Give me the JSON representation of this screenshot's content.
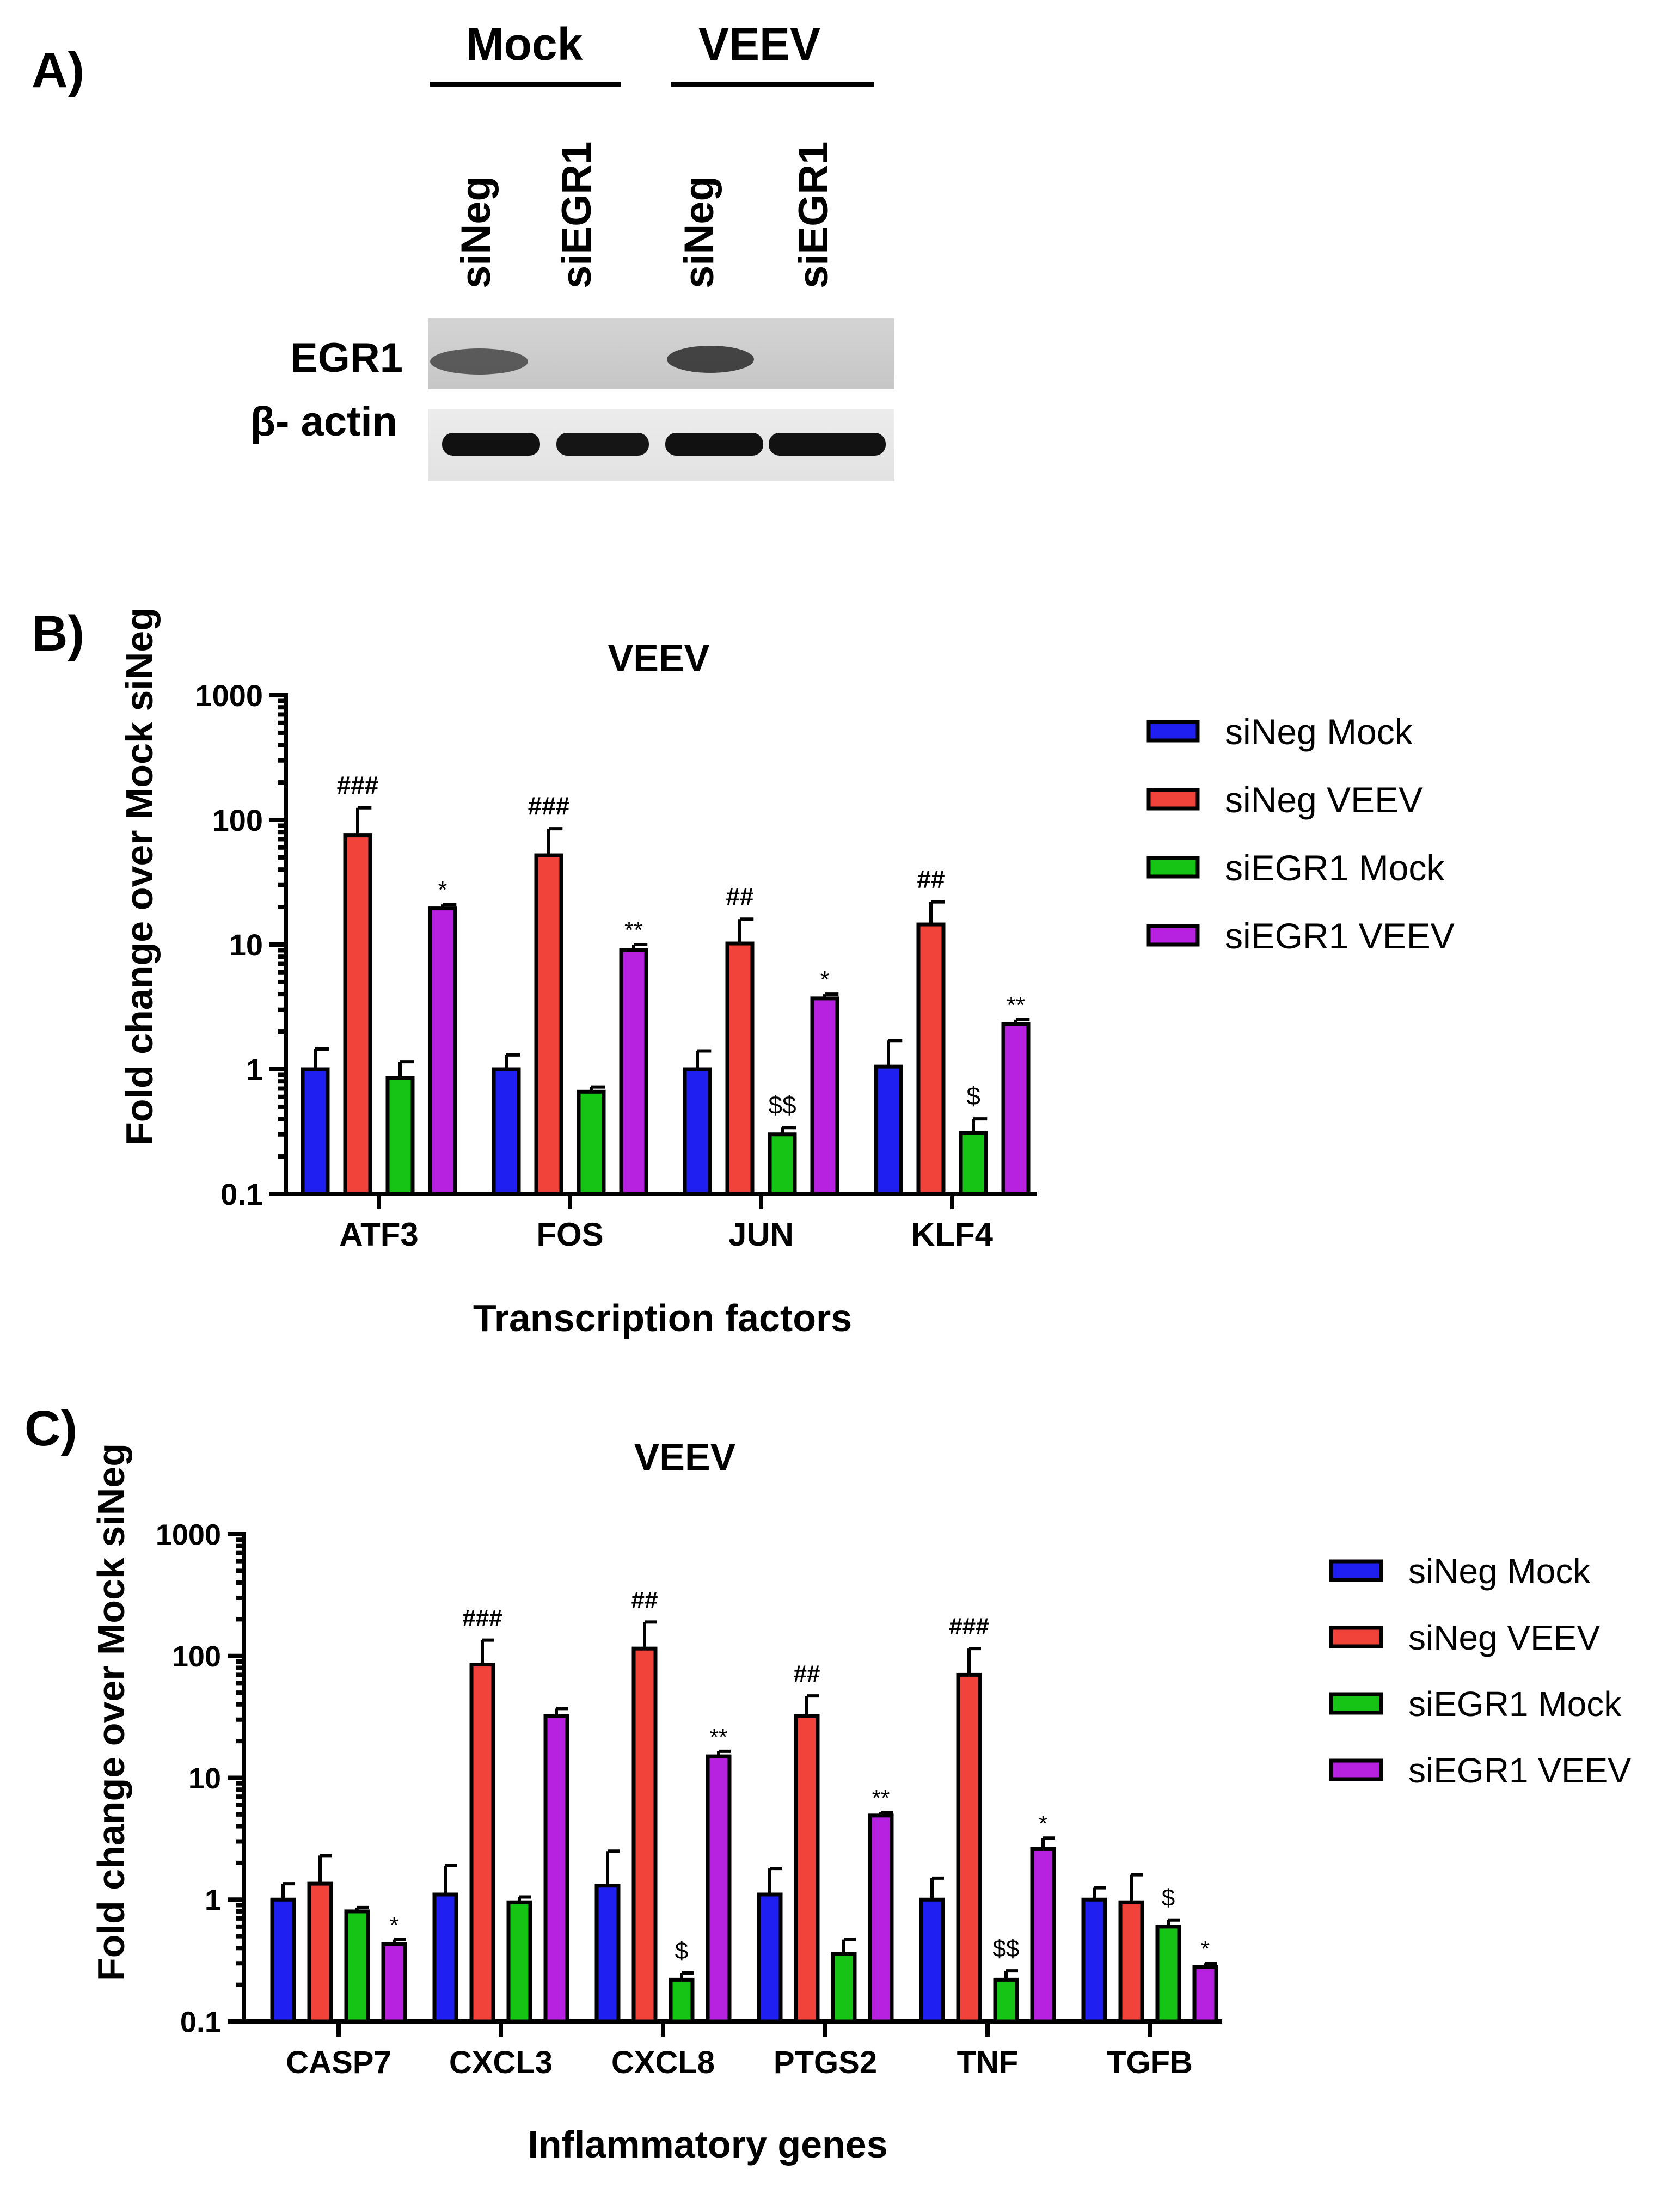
{
  "colors": {
    "siNeg Mock": "#1f1ff2",
    "siNeg VEEV": "#f2433a",
    "siEGR1 Mock": "#15c415",
    "siEGR1 VEEV": "#b622e0"
  },
  "panel_a": {
    "label": "A)",
    "groups": [
      "Mock",
      "VEEV"
    ],
    "lanes": [
      "siNeg",
      "siEGR1",
      "siNeg",
      "siEGR1"
    ],
    "rows": [
      "EGR1",
      "β- actin"
    ]
  },
  "chart_data": [
    {
      "panel": "B)",
      "type": "bar",
      "scale": "log",
      "title": "VEEV",
      "xlabel": "Transcription factors",
      "ylabel": "Fold change over Mock siNeg",
      "ylim": [
        0.1,
        1000
      ],
      "yticks": [
        "0.1",
        "1",
        "10",
        "100",
        "1000"
      ],
      "categories": [
        "ATF3",
        "FOS",
        "JUN",
        "KLF4"
      ],
      "legend_position": "right",
      "series": [
        {
          "name": "siNeg Mock",
          "values": [
            1.0,
            1.0,
            1.0,
            1.05
          ],
          "error": [
            1.45,
            1.3,
            1.4,
            1.7
          ]
        },
        {
          "name": "siNeg VEEV",
          "values": [
            75,
            52,
            10.2,
            14.5
          ],
          "error": [
            125,
            85,
            16,
            22
          ]
        },
        {
          "name": "siEGR1 Mock",
          "values": [
            0.85,
            0.66,
            0.3,
            0.31
          ],
          "error": [
            1.15,
            0.72,
            0.34,
            0.4
          ]
        },
        {
          "name": "siEGR1 VEEV",
          "values": [
            19.5,
            9.0,
            3.7,
            2.3
          ],
          "error": [
            21,
            10,
            4.0,
            2.5
          ]
        }
      ],
      "annotations": [
        {
          "category": "ATF3",
          "series": "siNeg VEEV",
          "text": "###"
        },
        {
          "category": "ATF3",
          "series": "siEGR1 VEEV",
          "text": "*"
        },
        {
          "category": "FOS",
          "series": "siNeg VEEV",
          "text": "###"
        },
        {
          "category": "FOS",
          "series": "siEGR1 VEEV",
          "text": "**"
        },
        {
          "category": "JUN",
          "series": "siNeg VEEV",
          "text": "##"
        },
        {
          "category": "JUN",
          "series": "siEGR1 Mock",
          "text": "$$"
        },
        {
          "category": "JUN",
          "series": "siEGR1 VEEV",
          "text": "*"
        },
        {
          "category": "KLF4",
          "series": "siNeg VEEV",
          "text": "##"
        },
        {
          "category": "KLF4",
          "series": "siEGR1 Mock",
          "text": "$"
        },
        {
          "category": "KLF4",
          "series": "siEGR1 VEEV",
          "text": "**"
        }
      ]
    },
    {
      "panel": "C)",
      "type": "bar",
      "scale": "log",
      "title": "VEEV",
      "xlabel": "Inflammatory genes",
      "ylabel": "Fold change over Mock siNeg",
      "ylim": [
        0.1,
        1000
      ],
      "yticks": [
        "0.1",
        "1",
        "10",
        "100",
        "1000"
      ],
      "categories": [
        "CASP7",
        "CXCL3",
        "CXCL8",
        "PTGS2",
        "TNF",
        "TGFB"
      ],
      "legend_position": "right",
      "series": [
        {
          "name": "siNeg Mock",
          "values": [
            1.0,
            1.1,
            1.3,
            1.1,
            1.0,
            1.0
          ],
          "error": [
            1.35,
            1.9,
            2.5,
            1.8,
            1.5,
            1.25
          ]
        },
        {
          "name": "siNeg VEEV",
          "values": [
            1.35,
            85,
            115,
            32,
            70,
            0.95
          ],
          "error": [
            2.3,
            135,
            190,
            47,
            115,
            1.6
          ]
        },
        {
          "name": "siEGR1 Mock",
          "values": [
            0.8,
            0.95,
            0.22,
            0.36,
            0.22,
            0.6
          ],
          "error": [
            0.86,
            1.05,
            0.25,
            0.47,
            0.26,
            0.68
          ]
        },
        {
          "name": "siEGR1 VEEV",
          "values": [
            0.43,
            32,
            15,
            4.9,
            2.6,
            0.28
          ],
          "error": [
            0.47,
            37,
            16.5,
            5.2,
            3.2,
            0.3
          ]
        }
      ],
      "annotations": [
        {
          "category": "CASP7",
          "series": "siEGR1 VEEV",
          "text": "*"
        },
        {
          "category": "CXCL3",
          "series": "siNeg VEEV",
          "text": "###"
        },
        {
          "category": "CXCL8",
          "series": "siNeg VEEV",
          "text": "##"
        },
        {
          "category": "CXCL8",
          "series": "siEGR1 Mock",
          "text": "$"
        },
        {
          "category": "CXCL8",
          "series": "siEGR1 VEEV",
          "text": "**"
        },
        {
          "category": "PTGS2",
          "series": "siNeg VEEV",
          "text": "##"
        },
        {
          "category": "PTGS2",
          "series": "siEGR1 VEEV",
          "text": "**"
        },
        {
          "category": "TNF",
          "series": "siNeg VEEV",
          "text": "###"
        },
        {
          "category": "TNF",
          "series": "siEGR1 Mock",
          "text": "$$"
        },
        {
          "category": "TNF",
          "series": "siEGR1 VEEV",
          "text": "*"
        },
        {
          "category": "TGFB",
          "series": "siEGR1 Mock",
          "text": "$"
        },
        {
          "category": "TGFB",
          "series": "siEGR1 VEEV",
          "text": "*"
        }
      ]
    }
  ]
}
